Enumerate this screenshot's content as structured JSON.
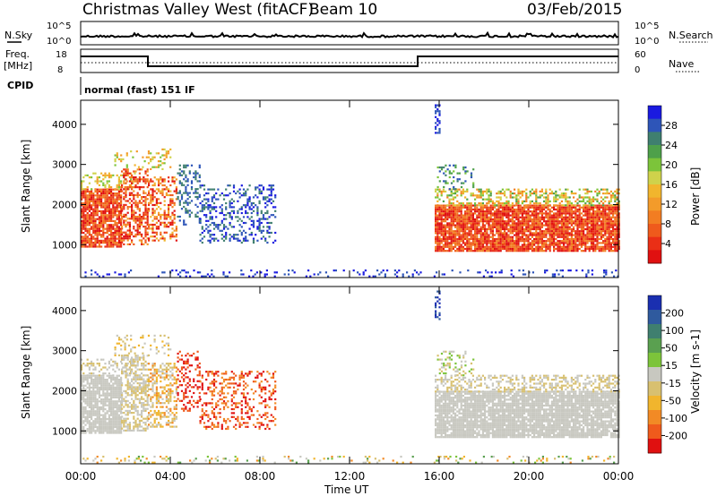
{
  "header": {
    "station": "Christmas Valley West (fitACF)",
    "beam": "Beam 10",
    "date": "03/Feb/2015"
  },
  "noise_panel": {
    "left_label": "N.Sky",
    "right_label": "N.Search",
    "left_ticks": [
      "10^5",
      "10^0"
    ],
    "right_ticks": [
      "10^5",
      "10^0"
    ]
  },
  "freq_panel": {
    "left_label_1": "Freq.",
    "left_label_2": "[MHz]",
    "left_ticks": [
      "18",
      "8"
    ],
    "right_label": "Nave",
    "right_ticks": [
      "60",
      "0"
    ]
  },
  "cpid": {
    "label": "CPID",
    "value": "normal (fast) 151 IF"
  },
  "chart_data": [
    {
      "type": "heatmap",
      "name": "power",
      "ylabel": "Slant Range [km]",
      "yticks": [
        "1000",
        "2000",
        "3000",
        "4000"
      ],
      "ylim": [
        180,
        4600
      ],
      "colorbar": {
        "label": "Power [dB]",
        "ticks": [
          "28",
          "24",
          "20",
          "16",
          "12",
          "8",
          "4"
        ],
        "colors": [
          "#1a1ae0",
          "#2e55b8",
          "#3f7f6f",
          "#4ea04a",
          "#7cc43a",
          "#cfd24b",
          "#f1b52d",
          "#f39b2a",
          "#f27d22",
          "#ef5a1c",
          "#ea2f16",
          "#e01010"
        ]
      }
    },
    {
      "type": "heatmap",
      "name": "velocity",
      "ylabel": "Slant Range [km]",
      "yticks": [
        "1000",
        "2000",
        "3000",
        "4000"
      ],
      "ylim": [
        180,
        4600
      ],
      "colorbar": {
        "label": "Velocity [m s-1]",
        "ticks": [
          "200",
          "100",
          "50",
          "15",
          "-15",
          "-50",
          "-100",
          "-200"
        ],
        "colors": [
          "#1a2fb0",
          "#2f5a9e",
          "#3f7f6f",
          "#5aa050",
          "#7cc43a",
          "#c8c8c0",
          "#d8c070",
          "#f1b52d",
          "#f28a25",
          "#ef5a1c",
          "#e01010"
        ]
      }
    }
  ],
  "time_axis": {
    "label": "Time UT",
    "ticks": [
      "00:00",
      "04:00",
      "08:00",
      "12:00",
      "16:00",
      "20:00",
      "00:00"
    ]
  }
}
